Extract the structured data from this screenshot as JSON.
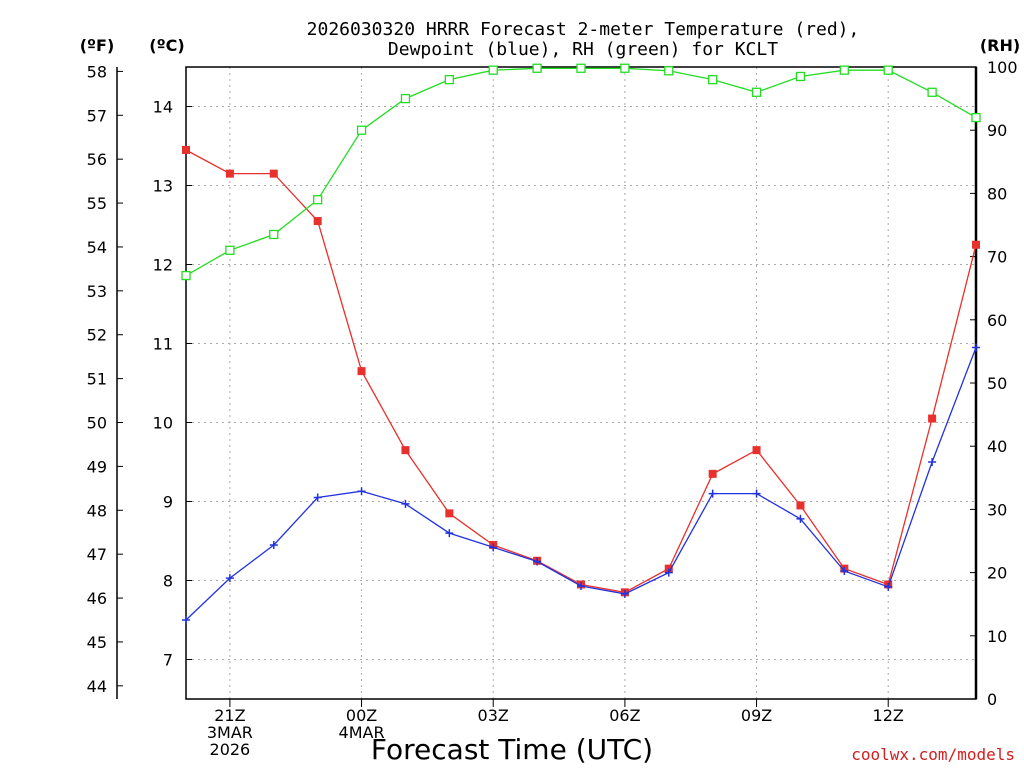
{
  "chart_data": {
    "type": "line",
    "title": [
      "2026030320 HRRR Forecast 2-meter Temperature (red),",
      "Dewpoint (blue), RH (green) for KCLT"
    ],
    "xlabel": "Forecast Time (UTC)",
    "left_unit_f": "(ºF)",
    "left_unit_c": "(ºC)",
    "right_unit": "(RH)",
    "credit": "coolwx.com/models",
    "x": [
      0,
      1,
      2,
      3,
      4,
      5,
      6,
      7,
      8,
      9,
      10,
      11,
      12,
      13,
      14,
      15,
      16,
      17,
      18
    ],
    "x_ticks": [
      {
        "x": 1,
        "lines": [
          "21Z",
          "3MAR",
          "2026"
        ]
      },
      {
        "x": 4,
        "lines": [
          "00Z",
          "4MAR"
        ]
      },
      {
        "x": 7,
        "lines": [
          "03Z"
        ]
      },
      {
        "x": 10,
        "lines": [
          "06Z"
        ]
      },
      {
        "x": 13,
        "lines": [
          "09Z"
        ]
      },
      {
        "x": 16,
        "lines": [
          "12Z"
        ]
      }
    ],
    "xlim": [
      0,
      18
    ],
    "celsius_axis": {
      "lim": [
        6.5,
        14.5
      ],
      "ticks": [
        7,
        8,
        9,
        10,
        11,
        12,
        13,
        14
      ]
    },
    "fahrenheit_axis": {
      "lim": [
        43.7,
        58.1
      ],
      "ticks": [
        44,
        45,
        46,
        47,
        48,
        49,
        50,
        51,
        52,
        53,
        54,
        55,
        56,
        57,
        58
      ]
    },
    "rh_axis": {
      "lim": [
        0,
        100
      ],
      "ticks": [
        0,
        10,
        20,
        30,
        40,
        50,
        60,
        70,
        80,
        90,
        100
      ]
    },
    "series": [
      {
        "name": "Temperature",
        "color": "#e8302c",
        "marker": "filled-square",
        "axis": "celsius",
        "values": [
          13.45,
          13.15,
          13.15,
          12.55,
          10.65,
          9.65,
          8.85,
          8.45,
          8.25,
          7.95,
          7.85,
          8.15,
          9.35,
          9.65,
          8.95,
          8.15,
          7.95,
          10.05,
          12.25
        ]
      },
      {
        "name": "Dewpoint",
        "color": "#2233dd",
        "marker": "plus",
        "axis": "celsius",
        "values": [
          7.5,
          8.03,
          8.45,
          9.05,
          9.13,
          8.97,
          8.6,
          8.42,
          8.24,
          7.93,
          7.83,
          8.1,
          9.1,
          9.1,
          8.78,
          8.12,
          7.92,
          9.5,
          10.95
        ]
      },
      {
        "name": "RH",
        "color": "#22dd22",
        "marker": "open-square",
        "axis": "rh",
        "values": [
          67,
          71,
          73.5,
          79,
          90,
          95,
          98,
          99.5,
          99.8,
          99.8,
          99.8,
          99.4,
          98,
          96,
          98.5,
          99.5,
          99.5,
          96,
          92
        ]
      }
    ]
  }
}
